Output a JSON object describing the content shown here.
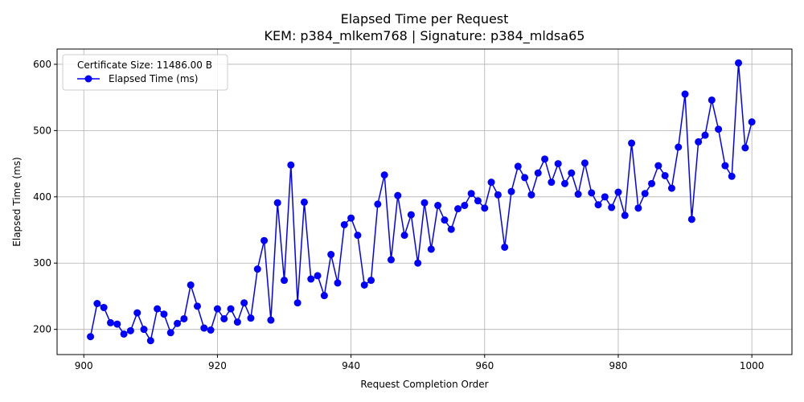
{
  "chart_data": {
    "type": "line",
    "title": "Elapsed Time per Request",
    "subtitle": "KEM: p384_mlkem768 | Signature: p384_mldsa65",
    "xlabel": "Request Completion Order",
    "ylabel": "Elapsed Time (ms)",
    "xlim": [
      896,
      1006
    ],
    "ylim": [
      162,
      623
    ],
    "xticks": [
      900,
      920,
      940,
      960,
      980,
      1000
    ],
    "yticks": [
      200,
      300,
      400,
      500,
      600
    ],
    "grid": true,
    "legend": {
      "title": "Certificate Size: 11486.00 B",
      "placement": "top-left"
    },
    "series": [
      {
        "name": "Elapsed Time (ms)",
        "color": "#0000ff",
        "x": [
          901,
          902,
          903,
          904,
          905,
          906,
          907,
          908,
          909,
          910,
          911,
          912,
          913,
          914,
          915,
          916,
          917,
          918,
          919,
          920,
          921,
          922,
          923,
          924,
          925,
          926,
          927,
          928,
          929,
          930,
          931,
          932,
          933,
          934,
          935,
          936,
          937,
          938,
          939,
          940,
          941,
          942,
          943,
          944,
          945,
          946,
          947,
          948,
          949,
          950,
          951,
          952,
          953,
          954,
          955,
          956,
          957,
          958,
          959,
          960,
          961,
          962,
          963,
          964,
          965,
          966,
          967,
          968,
          969,
          970,
          971,
          972,
          973,
          974,
          975,
          976,
          977,
          978,
          979,
          980,
          981,
          982,
          983,
          984,
          985,
          986,
          987,
          988,
          989,
          990,
          991,
          992,
          993,
          994,
          995,
          996,
          997,
          998,
          999,
          1000
        ],
        "values": [
          189,
          239,
          233,
          210,
          208,
          193,
          198,
          225,
          200,
          183,
          231,
          223,
          195,
          209,
          216,
          267,
          235,
          202,
          199,
          231,
          216,
          231,
          211,
          240,
          217,
          291,
          334,
          214,
          391,
          274,
          448,
          240,
          392,
          276,
          281,
          251,
          313,
          270,
          358,
          368,
          342,
          267,
          274,
          389,
          433,
          305,
          402,
          342,
          373,
          300,
          391,
          321,
          387,
          365,
          351,
          382,
          387,
          405,
          394,
          383,
          422,
          403,
          324,
          408,
          446,
          429,
          403,
          436,
          457,
          422,
          450,
          420,
          436,
          404,
          451,
          406,
          388,
          400,
          384,
          407,
          372,
          481,
          383,
          405,
          420,
          447,
          432,
          413,
          475,
          555,
          366,
          483,
          493,
          546,
          502,
          447,
          431,
          602,
          474,
          513
        ]
      }
    ]
  }
}
